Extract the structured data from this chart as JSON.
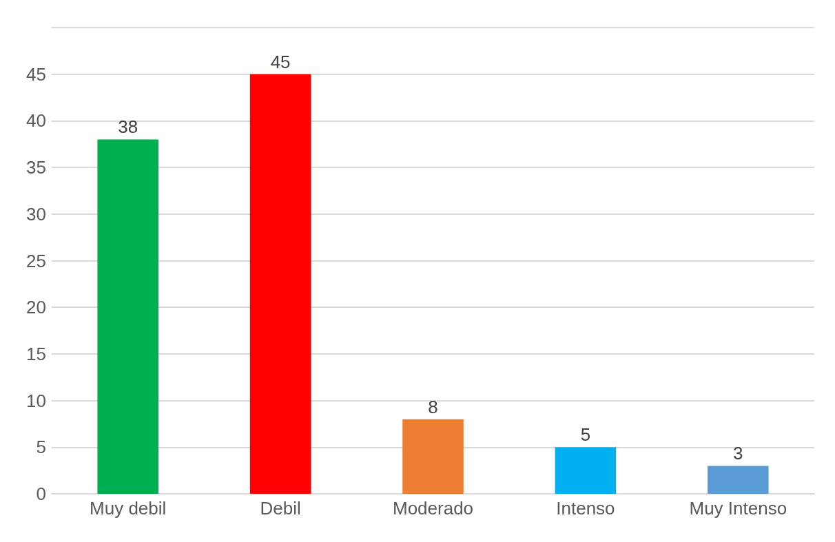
{
  "chart_data": {
    "type": "bar",
    "categories": [
      "Muy debil",
      "Debil",
      "Moderado",
      "Intenso",
      "Muy Intenso"
    ],
    "values": [
      38,
      45,
      8,
      5,
      3
    ],
    "colors": [
      "#00b050",
      "#ff0000",
      "#ed7d31",
      "#00b0f0",
      "#5b9bd5"
    ],
    "ylim": [
      0,
      50
    ],
    "yticks": [
      0,
      5,
      10,
      15,
      20,
      25,
      30,
      35,
      40,
      45,
      {
        "value": 50,
        "label": null
      }
    ],
    "grid": "y",
    "data_labels": true
  }
}
